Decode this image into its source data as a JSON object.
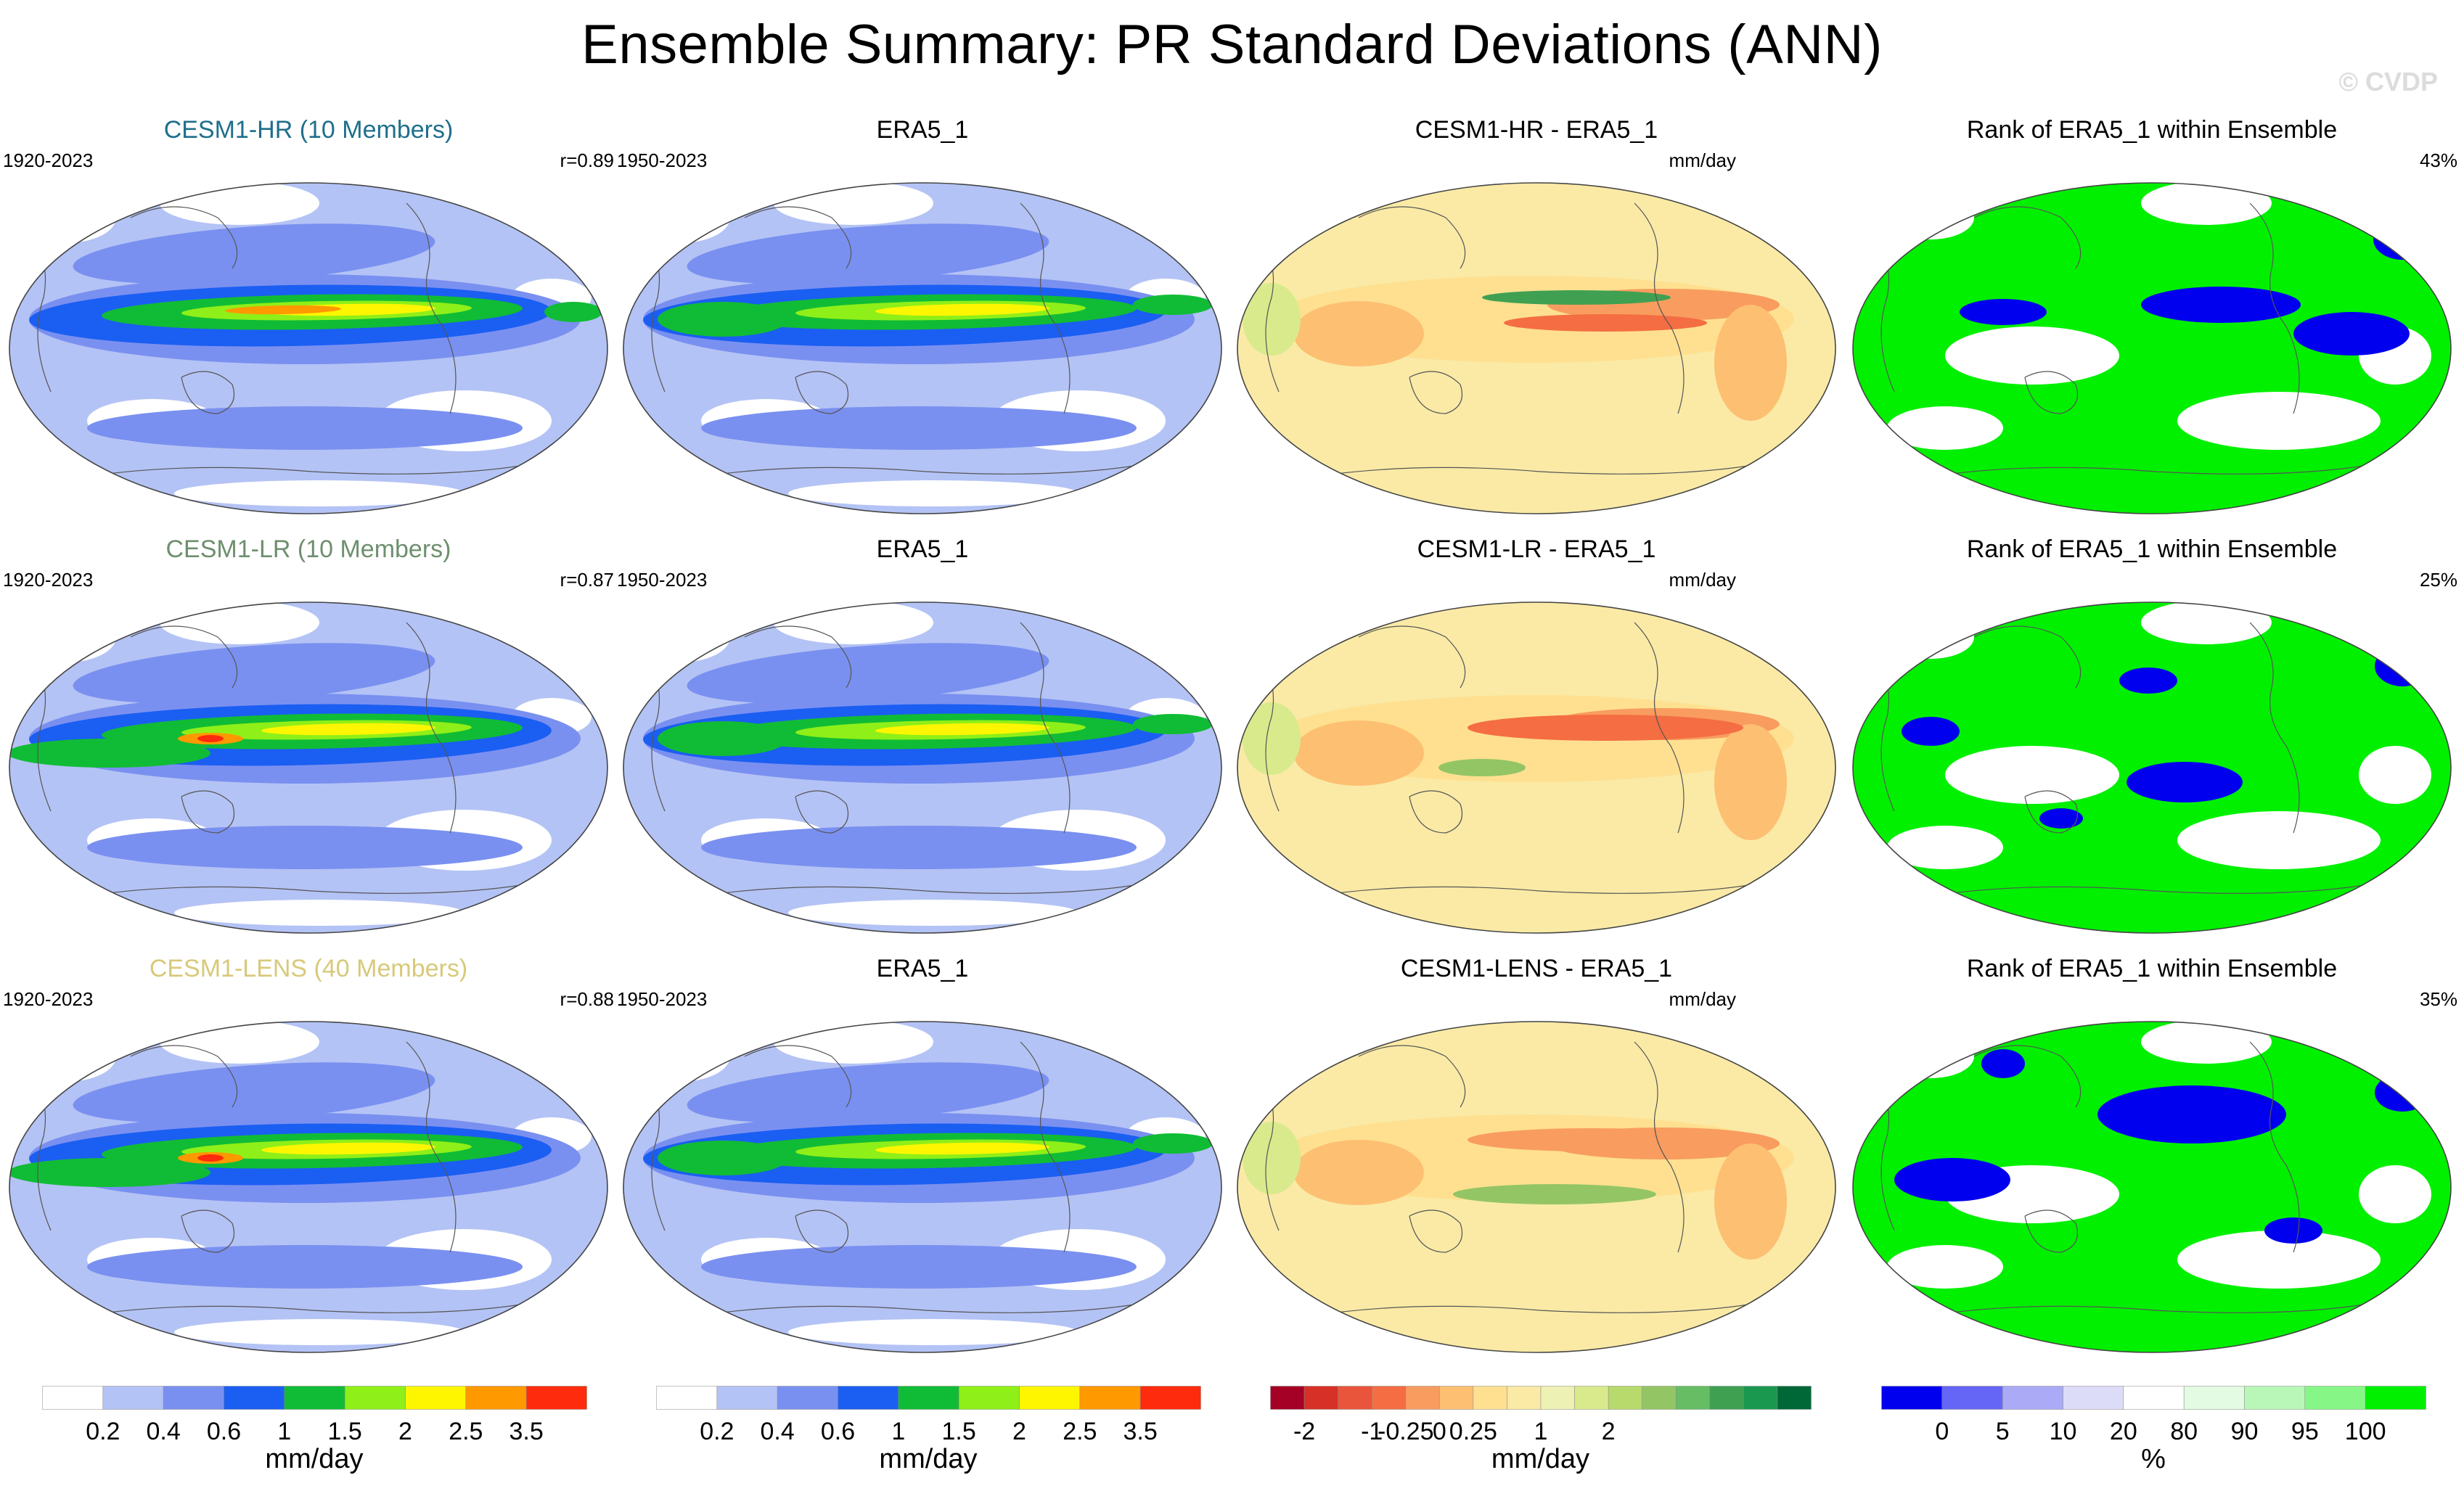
{
  "title": "Ensemble Summary: PR Standard Deviations (ANN)",
  "watermark": "© CVDP",
  "rows": [
    {
      "model": {
        "title": "CESM1-HR (10 Members)",
        "color": "#1f6f8b",
        "period": "1920-2023",
        "stat": "r=0.89",
        "style": "hr"
      },
      "obs": {
        "title": "ERA5_1",
        "period": "1950-2023",
        "style": "obs"
      },
      "diff": {
        "title": "CESM1-HR - ERA5_1",
        "units": "mm/day",
        "style": "diff_hr"
      },
      "rank": {
        "title": "Rank of ERA5_1 within Ensemble",
        "pct": "43%",
        "style": "rank_hr"
      }
    },
    {
      "model": {
        "title": "CESM1-LR (10 Members)",
        "color": "#6e8f6e",
        "period": "1920-2023",
        "stat": "r=0.87",
        "style": "lr"
      },
      "obs": {
        "title": "ERA5_1",
        "period": "1950-2023",
        "style": "obs"
      },
      "diff": {
        "title": "CESM1-LR - ERA5_1",
        "units": "mm/day",
        "style": "diff_lr"
      },
      "rank": {
        "title": "Rank of ERA5_1 within Ensemble",
        "pct": "25%",
        "style": "rank_lr"
      }
    },
    {
      "model": {
        "title": "CESM1-LENS (40 Members)",
        "color": "#d8c97a",
        "period": "1920-2023",
        "stat": "r=0.88",
        "style": "lens"
      },
      "obs": {
        "title": "ERA5_1",
        "period": "1950-2023",
        "style": "obs"
      },
      "diff": {
        "title": "CESM1-LENS - ERA5_1",
        "units": "mm/day",
        "style": "diff_lens"
      },
      "rank": {
        "title": "Rank of ERA5_1 within Ensemble",
        "pct": "35%",
        "style": "rank_lens"
      }
    }
  ],
  "colorbars": [
    {
      "id": "sd1",
      "units": "mm/day",
      "colors": [
        "#ffffff",
        "#b4c3f5",
        "#7a90f0",
        "#1b5ef2",
        "#10bc35",
        "#8fef18",
        "#fdf600",
        "#ff9900",
        "#ff2b0d"
      ],
      "labels": [
        "0.2",
        "0.4",
        "0.6",
        "1",
        "1.5",
        "2",
        "2.5",
        "3.5"
      ]
    },
    {
      "id": "sd2",
      "units": "mm/day",
      "colors": [
        "#ffffff",
        "#b4c3f5",
        "#7a90f0",
        "#1b5ef2",
        "#10bc35",
        "#8fef18",
        "#fdf600",
        "#ff9900",
        "#ff2b0d"
      ],
      "labels": [
        "0.2",
        "0.4",
        "0.6",
        "1",
        "1.5",
        "2",
        "2.5",
        "3.5"
      ]
    },
    {
      "id": "diff",
      "units": "mm/day",
      "colors": [
        "#a50026",
        "#d73027",
        "#e8553a",
        "#f46d43",
        "#f99c5f",
        "#fdbf72",
        "#fee090",
        "#faeaa6",
        "#eef1b4",
        "#d9ea8c",
        "#b8d96b",
        "#93c565",
        "#66bd63",
        "#3fa052",
        "#1a9850",
        "#006837"
      ],
      "labels": [
        "-2",
        "",
        "-1",
        "-0.25",
        "0",
        "0.25",
        "",
        "1",
        "",
        "2"
      ]
    },
    {
      "id": "rank",
      "units": "%",
      "colors": [
        "#0000ee",
        "#6666f6",
        "#aaaaf6",
        "#dcdcf8",
        "#ffffff",
        "#e2fbe2",
        "#b8f7b8",
        "#86f786",
        "#00f000"
      ],
      "labels": [
        "0",
        "5",
        "10",
        "20",
        "80",
        "90",
        "95",
        "100"
      ]
    }
  ],
  "chart_data": [
    {
      "type": "heatmap",
      "panel": "CESM1-HR (10 Members)",
      "description_period": "1920-2023",
      "pattern_correlation": 0.89,
      "units": "mm/day",
      "levels": [
        0.2,
        0.4,
        0.6,
        1,
        1.5,
        2,
        2.5,
        3.5
      ]
    },
    {
      "type": "heatmap",
      "panel": "ERA5_1",
      "description_period": "1950-2023",
      "units": "mm/day",
      "levels": [
        0.2,
        0.4,
        0.6,
        1,
        1.5,
        2,
        2.5,
        3.5
      ]
    },
    {
      "type": "heatmap",
      "panel": "CESM1-HR - ERA5_1",
      "units": "mm/day",
      "levels": [
        -2,
        -1.5,
        -1,
        -0.5,
        -0.25,
        -0.1,
        0,
        0.1,
        0.25,
        0.5,
        1,
        1.5,
        2
      ]
    },
    {
      "type": "heatmap",
      "panel": "Rank of ERA5_1 within Ensemble",
      "percent_area": 43,
      "units": "%",
      "levels": [
        0,
        5,
        10,
        20,
        80,
        90,
        95,
        100
      ]
    },
    {
      "type": "heatmap",
      "panel": "CESM1-LR (10 Members)",
      "description_period": "1920-2023",
      "pattern_correlation": 0.87,
      "units": "mm/day"
    },
    {
      "type": "heatmap",
      "panel": "CESM1-LR - ERA5_1",
      "units": "mm/day"
    },
    {
      "type": "heatmap",
      "panel": "Rank of ERA5_1 within Ensemble",
      "percent_area": 25,
      "units": "%"
    },
    {
      "type": "heatmap",
      "panel": "CESM1-LENS (40 Members)",
      "description_period": "1920-2023",
      "pattern_correlation": 0.88,
      "units": "mm/day"
    },
    {
      "type": "heatmap",
      "panel": "CESM1-LENS - ERA5_1",
      "units": "mm/day"
    },
    {
      "type": "heatmap",
      "panel": "Rank of ERA5_1 within Ensemble",
      "percent_area": 35,
      "units": "%"
    }
  ]
}
